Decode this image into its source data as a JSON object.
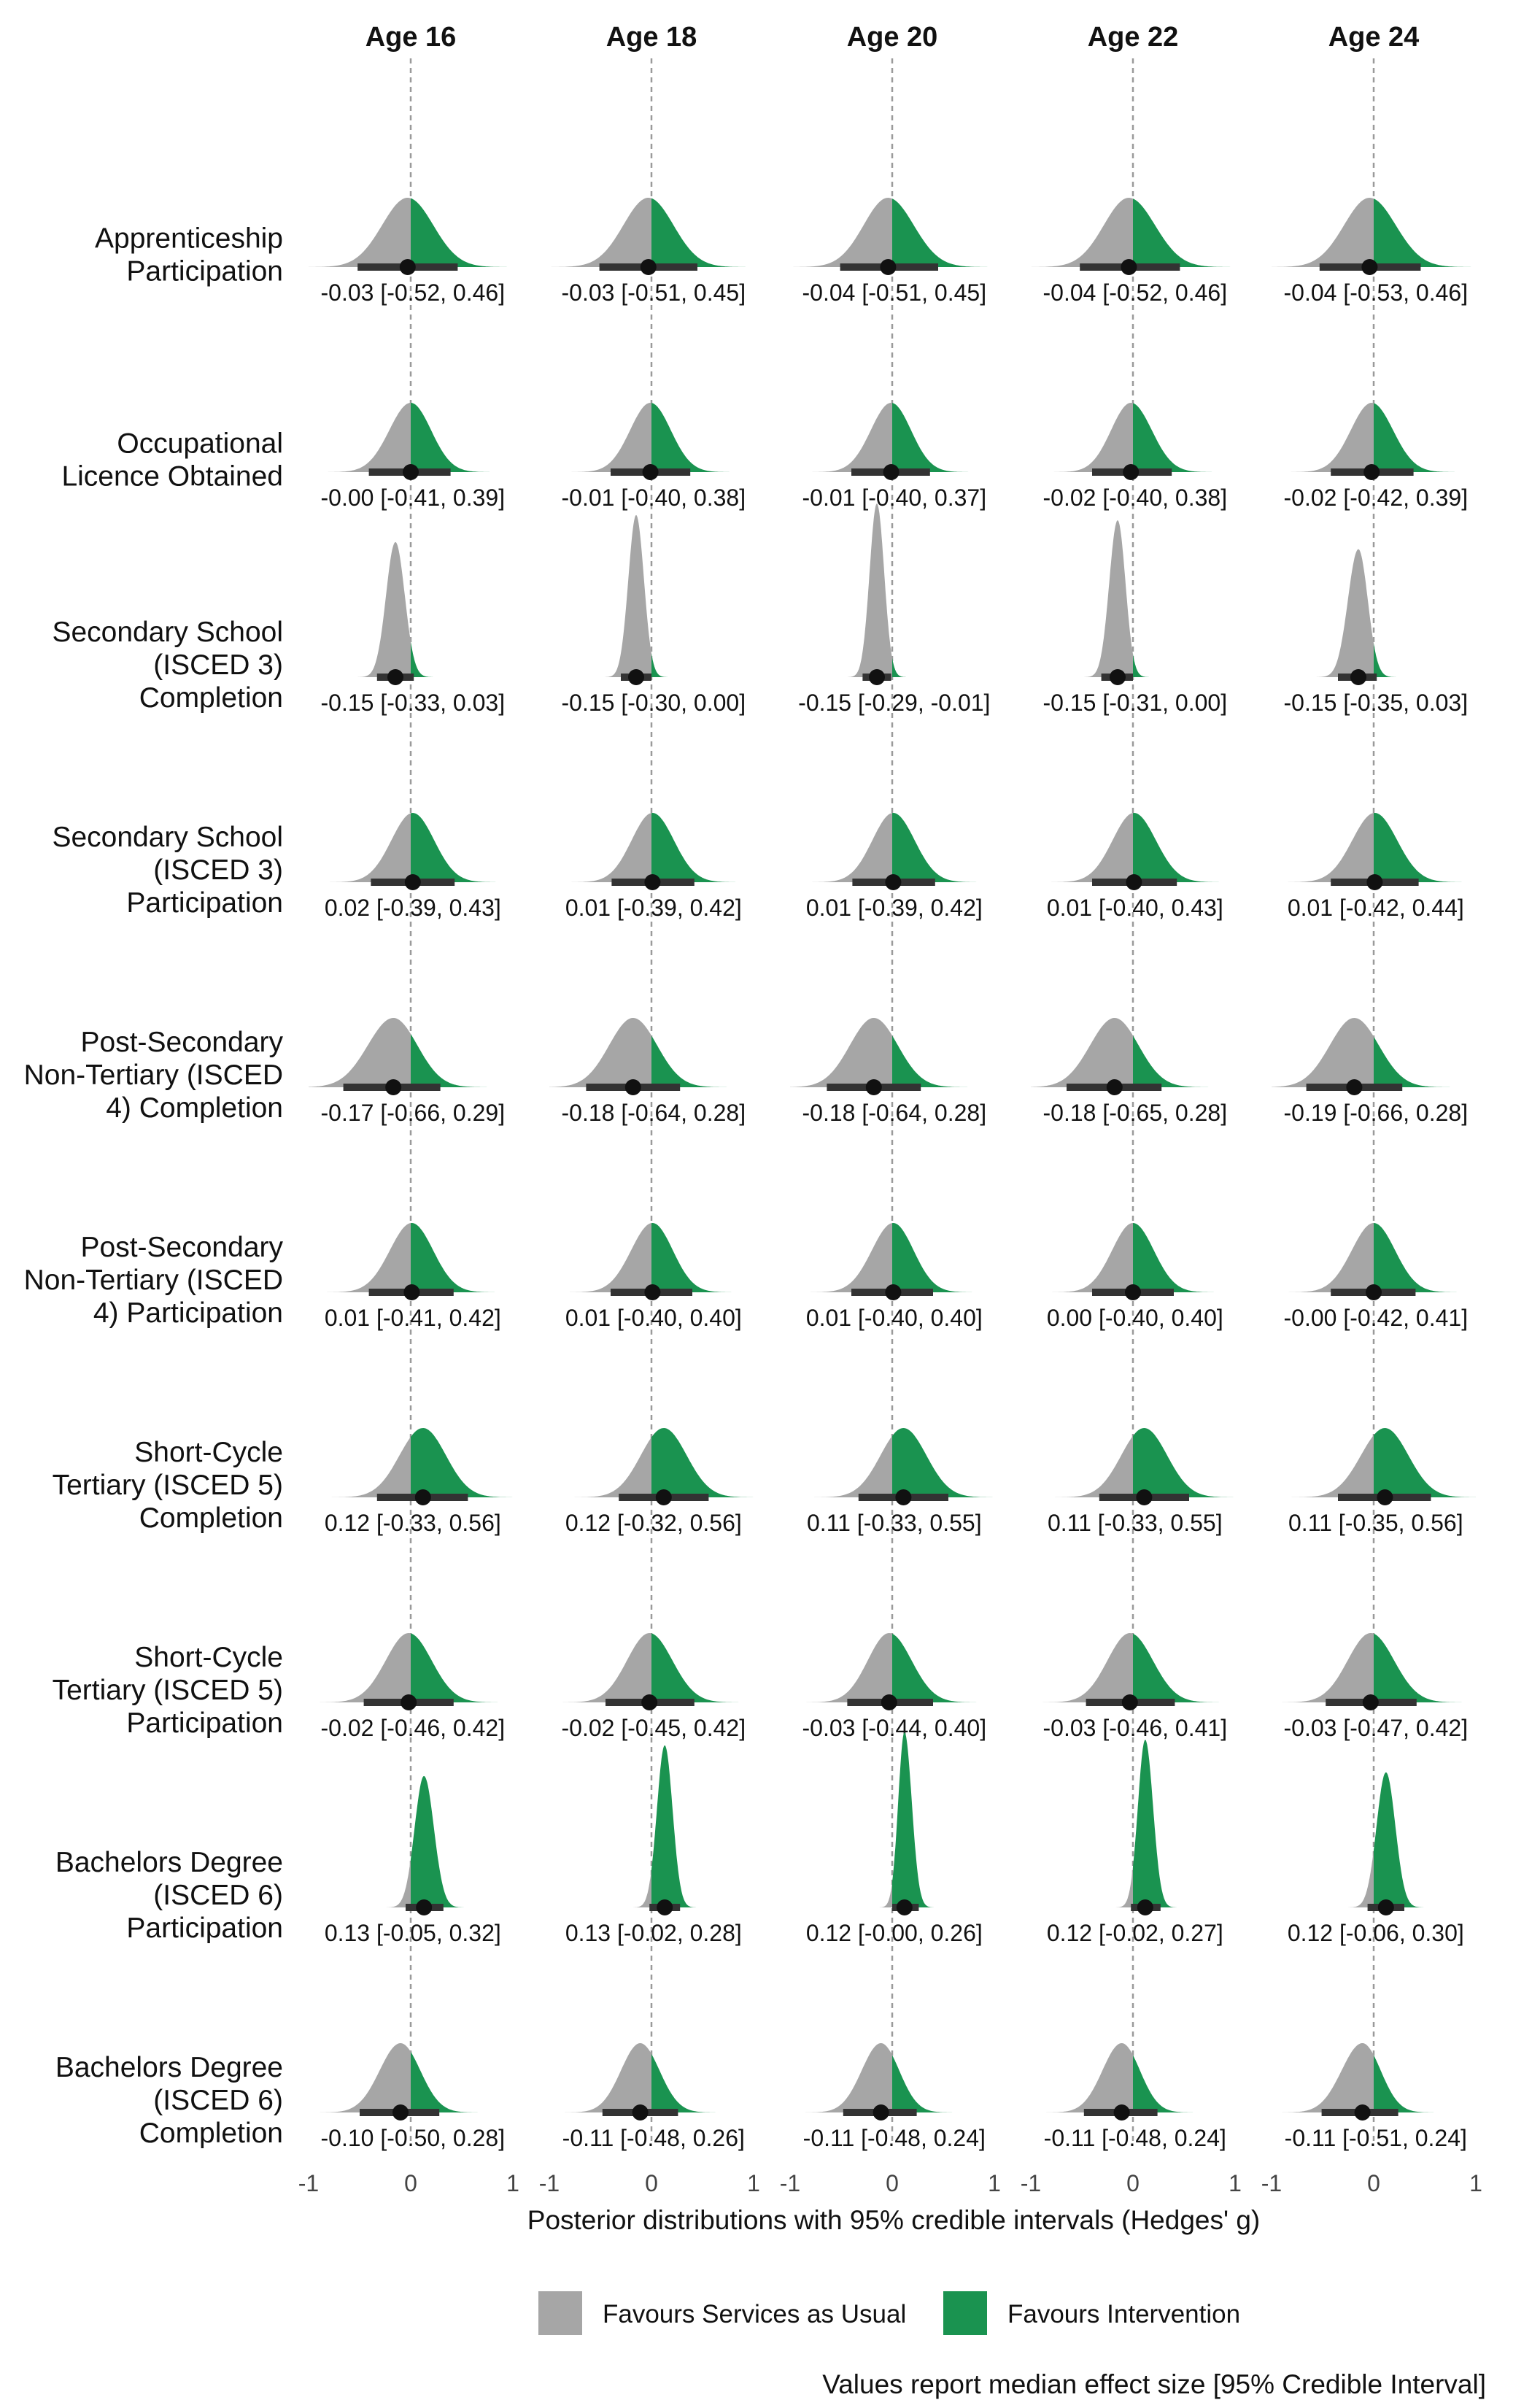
{
  "chart_data": {
    "type": "density-facet",
    "columns": [
      "Age 16",
      "Age 18",
      "Age 20",
      "Age 22",
      "Age 24"
    ],
    "rows": [
      "Apprenticeship\nParticipation",
      "Occupational\nLicence Obtained",
      "Secondary School\n(ISCED 3)\nCompletion",
      "Secondary School\n(ISCED 3)\nParticipation",
      "Post-Secondary\nNon-Tertiary (ISCED\n4) Completion",
      "Post-Secondary\nNon-Tertiary (ISCED\n4) Participation",
      "Short-Cycle\nTertiary (ISCED 5)\nCompletion",
      "Short-Cycle\nTertiary (ISCED 5)\nParticipation",
      "Bachelors Degree\n(ISCED 6)\nParticipation",
      "Bachelors Degree\n(ISCED 6)\nCompletion"
    ],
    "values": [
      [
        [
          -0.03,
          -0.52,
          0.46
        ],
        [
          -0.03,
          -0.51,
          0.45
        ],
        [
          -0.04,
          -0.51,
          0.45
        ],
        [
          -0.04,
          -0.52,
          0.46
        ],
        [
          -0.04,
          -0.53,
          0.46
        ]
      ],
      [
        [
          -0.0,
          -0.41,
          0.39
        ],
        [
          -0.01,
          -0.4,
          0.38
        ],
        [
          -0.01,
          -0.4,
          0.37
        ],
        [
          -0.02,
          -0.4,
          0.38
        ],
        [
          -0.02,
          -0.42,
          0.39
        ]
      ],
      [
        [
          -0.15,
          -0.33,
          0.03
        ],
        [
          -0.15,
          -0.3,
          0.0
        ],
        [
          -0.15,
          -0.29,
          -0.01
        ],
        [
          -0.15,
          -0.31,
          0.0
        ],
        [
          -0.15,
          -0.35,
          0.03
        ]
      ],
      [
        [
          0.02,
          -0.39,
          0.43
        ],
        [
          0.01,
          -0.39,
          0.42
        ],
        [
          0.01,
          -0.39,
          0.42
        ],
        [
          0.01,
          -0.4,
          0.43
        ],
        [
          0.01,
          -0.42,
          0.44
        ]
      ],
      [
        [
          -0.17,
          -0.66,
          0.29
        ],
        [
          -0.18,
          -0.64,
          0.28
        ],
        [
          -0.18,
          -0.64,
          0.28
        ],
        [
          -0.18,
          -0.65,
          0.28
        ],
        [
          -0.19,
          -0.66,
          0.28
        ]
      ],
      [
        [
          0.01,
          -0.41,
          0.42
        ],
        [
          0.01,
          -0.4,
          0.4
        ],
        [
          0.01,
          -0.4,
          0.4
        ],
        [
          0.0,
          -0.4,
          0.4
        ],
        [
          -0.0,
          -0.42,
          0.41
        ]
      ],
      [
        [
          0.12,
          -0.33,
          0.56
        ],
        [
          0.12,
          -0.32,
          0.56
        ],
        [
          0.11,
          -0.33,
          0.55
        ],
        [
          0.11,
          -0.33,
          0.55
        ],
        [
          0.11,
          -0.35,
          0.56
        ]
      ],
      [
        [
          -0.02,
          -0.46,
          0.42
        ],
        [
          -0.02,
          -0.45,
          0.42
        ],
        [
          -0.03,
          -0.44,
          0.4
        ],
        [
          -0.03,
          -0.46,
          0.41
        ],
        [
          -0.03,
          -0.47,
          0.42
        ]
      ],
      [
        [
          0.13,
          -0.05,
          0.32
        ],
        [
          0.13,
          -0.02,
          0.28
        ],
        [
          0.12,
          -0.0,
          0.26
        ],
        [
          0.12,
          -0.02,
          0.27
        ],
        [
          0.12,
          -0.06,
          0.3
        ]
      ],
      [
        [
          -0.1,
          -0.5,
          0.28
        ],
        [
          -0.11,
          -0.48,
          0.26
        ],
        [
          -0.11,
          -0.48,
          0.24
        ],
        [
          -0.11,
          -0.48,
          0.24
        ],
        [
          -0.11,
          -0.51,
          0.24
        ]
      ]
    ],
    "labels": [
      [
        "-0.03 [-0.52, 0.46]",
        "-0.03 [-0.51, 0.45]",
        "-0.04 [-0.51, 0.45]",
        "-0.04 [-0.52, 0.46]",
        "-0.04 [-0.53, 0.46]"
      ],
      [
        "-0.00 [-0.41, 0.39]",
        "-0.01 [-0.40, 0.38]",
        "-0.01 [-0.40, 0.37]",
        "-0.02 [-0.40, 0.38]",
        "-0.02 [-0.42, 0.39]"
      ],
      [
        "-0.15 [-0.33, 0.03]",
        "-0.15 [-0.30, 0.00]",
        "-0.15 [-0.29, -0.01]",
        "-0.15 [-0.31, 0.00]",
        "-0.15 [-0.35, 0.03]"
      ],
      [
        "0.02 [-0.39, 0.43]",
        "0.01 [-0.39, 0.42]",
        "0.01 [-0.39, 0.42]",
        "0.01 [-0.40, 0.43]",
        "0.01 [-0.42, 0.44]"
      ],
      [
        "-0.17 [-0.66, 0.29]",
        "-0.18 [-0.64, 0.28]",
        "-0.18 [-0.64, 0.28]",
        "-0.18 [-0.65, 0.28]",
        "-0.19 [-0.66, 0.28]"
      ],
      [
        "0.01 [-0.41, 0.42]",
        "0.01 [-0.40, 0.40]",
        "0.01 [-0.40, 0.40]",
        "0.00 [-0.40, 0.40]",
        "-0.00 [-0.42, 0.41]"
      ],
      [
        "0.12 [-0.33, 0.56]",
        "0.12 [-0.32, 0.56]",
        "0.11 [-0.33, 0.55]",
        "0.11 [-0.33, 0.55]",
        "0.11 [-0.35, 0.56]"
      ],
      [
        "-0.02 [-0.46, 0.42]",
        "-0.02 [-0.45, 0.42]",
        "-0.03 [-0.44, 0.40]",
        "-0.03 [-0.46, 0.41]",
        "-0.03 [-0.47, 0.42]"
      ],
      [
        "0.13 [-0.05, 0.32]",
        "0.13 [-0.02, 0.28]",
        "0.12 [-0.00, 0.26]",
        "0.12 [-0.02, 0.27]",
        "0.12 [-0.06, 0.30]"
      ],
      [
        "-0.10 [-0.50, 0.28]",
        "-0.11 [-0.48, 0.26]",
        "-0.11 [-0.48, 0.24]",
        "-0.11 [-0.48, 0.24]",
        "-0.11 [-0.51, 0.24]"
      ]
    ],
    "xlim": [
      -1,
      1
    ],
    "xticks": [
      "-1",
      "0",
      "1"
    ],
    "xlabel": "Posterior distributions with 95% credible intervals (Hedges' g)",
    "reference_line": 0,
    "legend": {
      "position": "bottom",
      "items": [
        {
          "label": "Favours Services as Usual",
          "color": "#a6a6a6"
        },
        {
          "label": "Favours Intervention",
          "color": "#1a9350"
        }
      ]
    },
    "caption": "Values report median effect size [95% Credible Interval]",
    "grid": false
  }
}
